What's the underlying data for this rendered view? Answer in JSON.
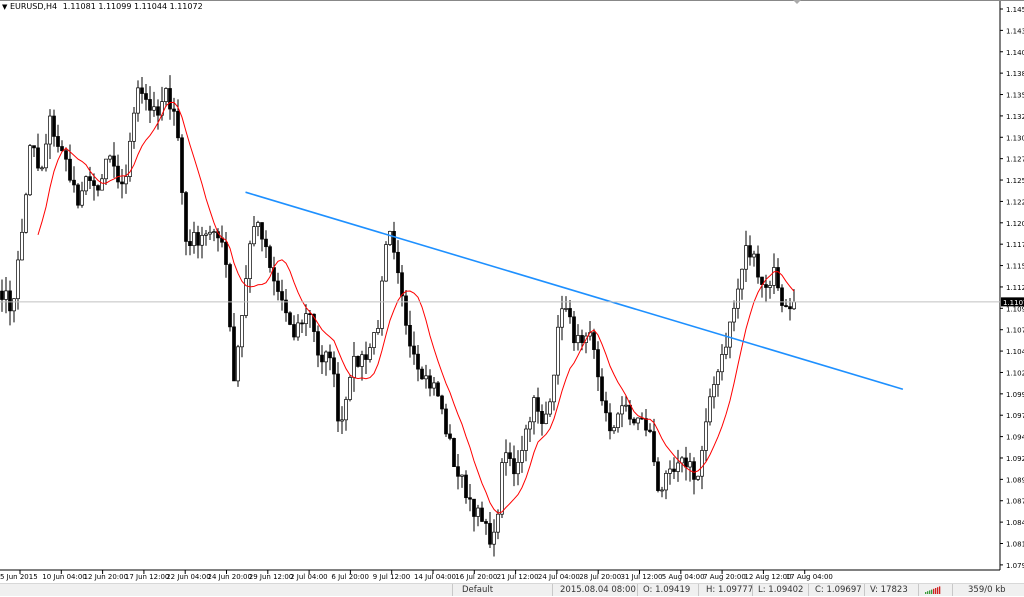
{
  "header": {
    "symbol": "EURUSD,H4",
    "ohlc": "1.11081 1.11099 1.11044 1.11072",
    "menu_icon": "triangle-down-icon"
  },
  "status": {
    "profile": "Default",
    "datetime": "2015.08.04 08:00",
    "open": "O: 1.09419",
    "high": "H: 1.09777",
    "low": "L: 1.09402",
    "close": "C: 1.09697",
    "volume": "V: 17823",
    "connection_icon": "connection-bars-icon",
    "traffic": "359/0 kb"
  },
  "chart_data": {
    "type": "candlestick",
    "symbol": "EURUSD",
    "timeframe": "H4",
    "current_price": "1.11072",
    "y_ticks": [
      "1.14565",
      "1.14310",
      "1.14055",
      "1.13800",
      "1.13545",
      "1.13290",
      "1.13035",
      "1.12780",
      "1.12525",
      "1.12270",
      "1.12015",
      "1.11760",
      "1.11505",
      "1.11250",
      "1.10995",
      "1.10740",
      "1.10485",
      "1.10230",
      "1.09975",
      "1.09720",
      "1.09465",
      "1.09210",
      "1.08955",
      "1.08705",
      "1.08450",
      "1.08195",
      "1.07940"
    ],
    "ylim": [
      1.0794,
      1.14565
    ],
    "x_ticks": [
      "5 Jun 2015",
      "10 Jun 04:00",
      "12 Jun 20:00",
      "17 Jun 12:00",
      "22 Jun 04:00",
      "24 Jun 20:00",
      "29 Jun 12:00",
      "2 Jul 04:00",
      "6 Jul 20:00",
      "9 Jul 12:00",
      "14 Jul 04:00",
      "16 Jul 20:00",
      "21 Jul 12:00",
      "24 Jul 04:00",
      "28 Jul 20:00",
      "31 Jul 12:00",
      "5 Aug 04:00",
      "7 Aug 20:00",
      "12 Aug 12:00",
      "17 Aug 04:00"
    ],
    "approx_closes": [
      1.1121,
      1.1097,
      1.1181,
      1.13,
      1.1253,
      1.1324,
      1.1288,
      1.1264,
      1.1217,
      1.1264,
      1.1229,
      1.1288,
      1.1241,
      1.1264,
      1.1372,
      1.1348,
      1.1324,
      1.1354,
      1.1336,
      1.1181,
      1.1181,
      1.1193,
      1.1181,
      1.1187,
      1.1014,
      1.1109,
      1.1205,
      1.1181,
      1.1133,
      1.1109,
      1.1062,
      1.1086,
      1.1097,
      1.1026,
      1.105,
      1.0954,
      1.1026,
      1.1038,
      1.105,
      1.1086,
      1.1193,
      1.1133,
      1.1074,
      1.1038,
      1.1014,
      1.1002,
      1.0954,
      1.0907,
      1.0883,
      1.0859,
      1.0835,
      1.0823,
      1.093,
      1.0907,
      1.0942,
      1.099,
      1.0954,
      1.1014,
      1.1109,
      1.1074,
      1.105,
      1.1062,
      1.1002,
      1.0942,
      1.099,
      1.0966,
      1.0966,
      1.0954,
      1.0883,
      1.0895,
      1.0907,
      1.0919,
      1.0895,
      1.0966,
      1.1026,
      1.1062,
      1.1109,
      1.1169,
      1.1157,
      1.1121,
      1.1145,
      1.1097,
      1.1103
    ],
    "moving_average": {
      "color": "#ff0000",
      "period": 10
    },
    "trendline": {
      "color": "#1e90ff",
      "start_price": 1.1238,
      "end_price": 1.1003,
      "start_fraction": 0.31,
      "end_fraction": 1.14
    },
    "colors": {
      "bull": "#ffffff",
      "bear": "#000000",
      "outline": "#000000",
      "grid": "none"
    }
  }
}
